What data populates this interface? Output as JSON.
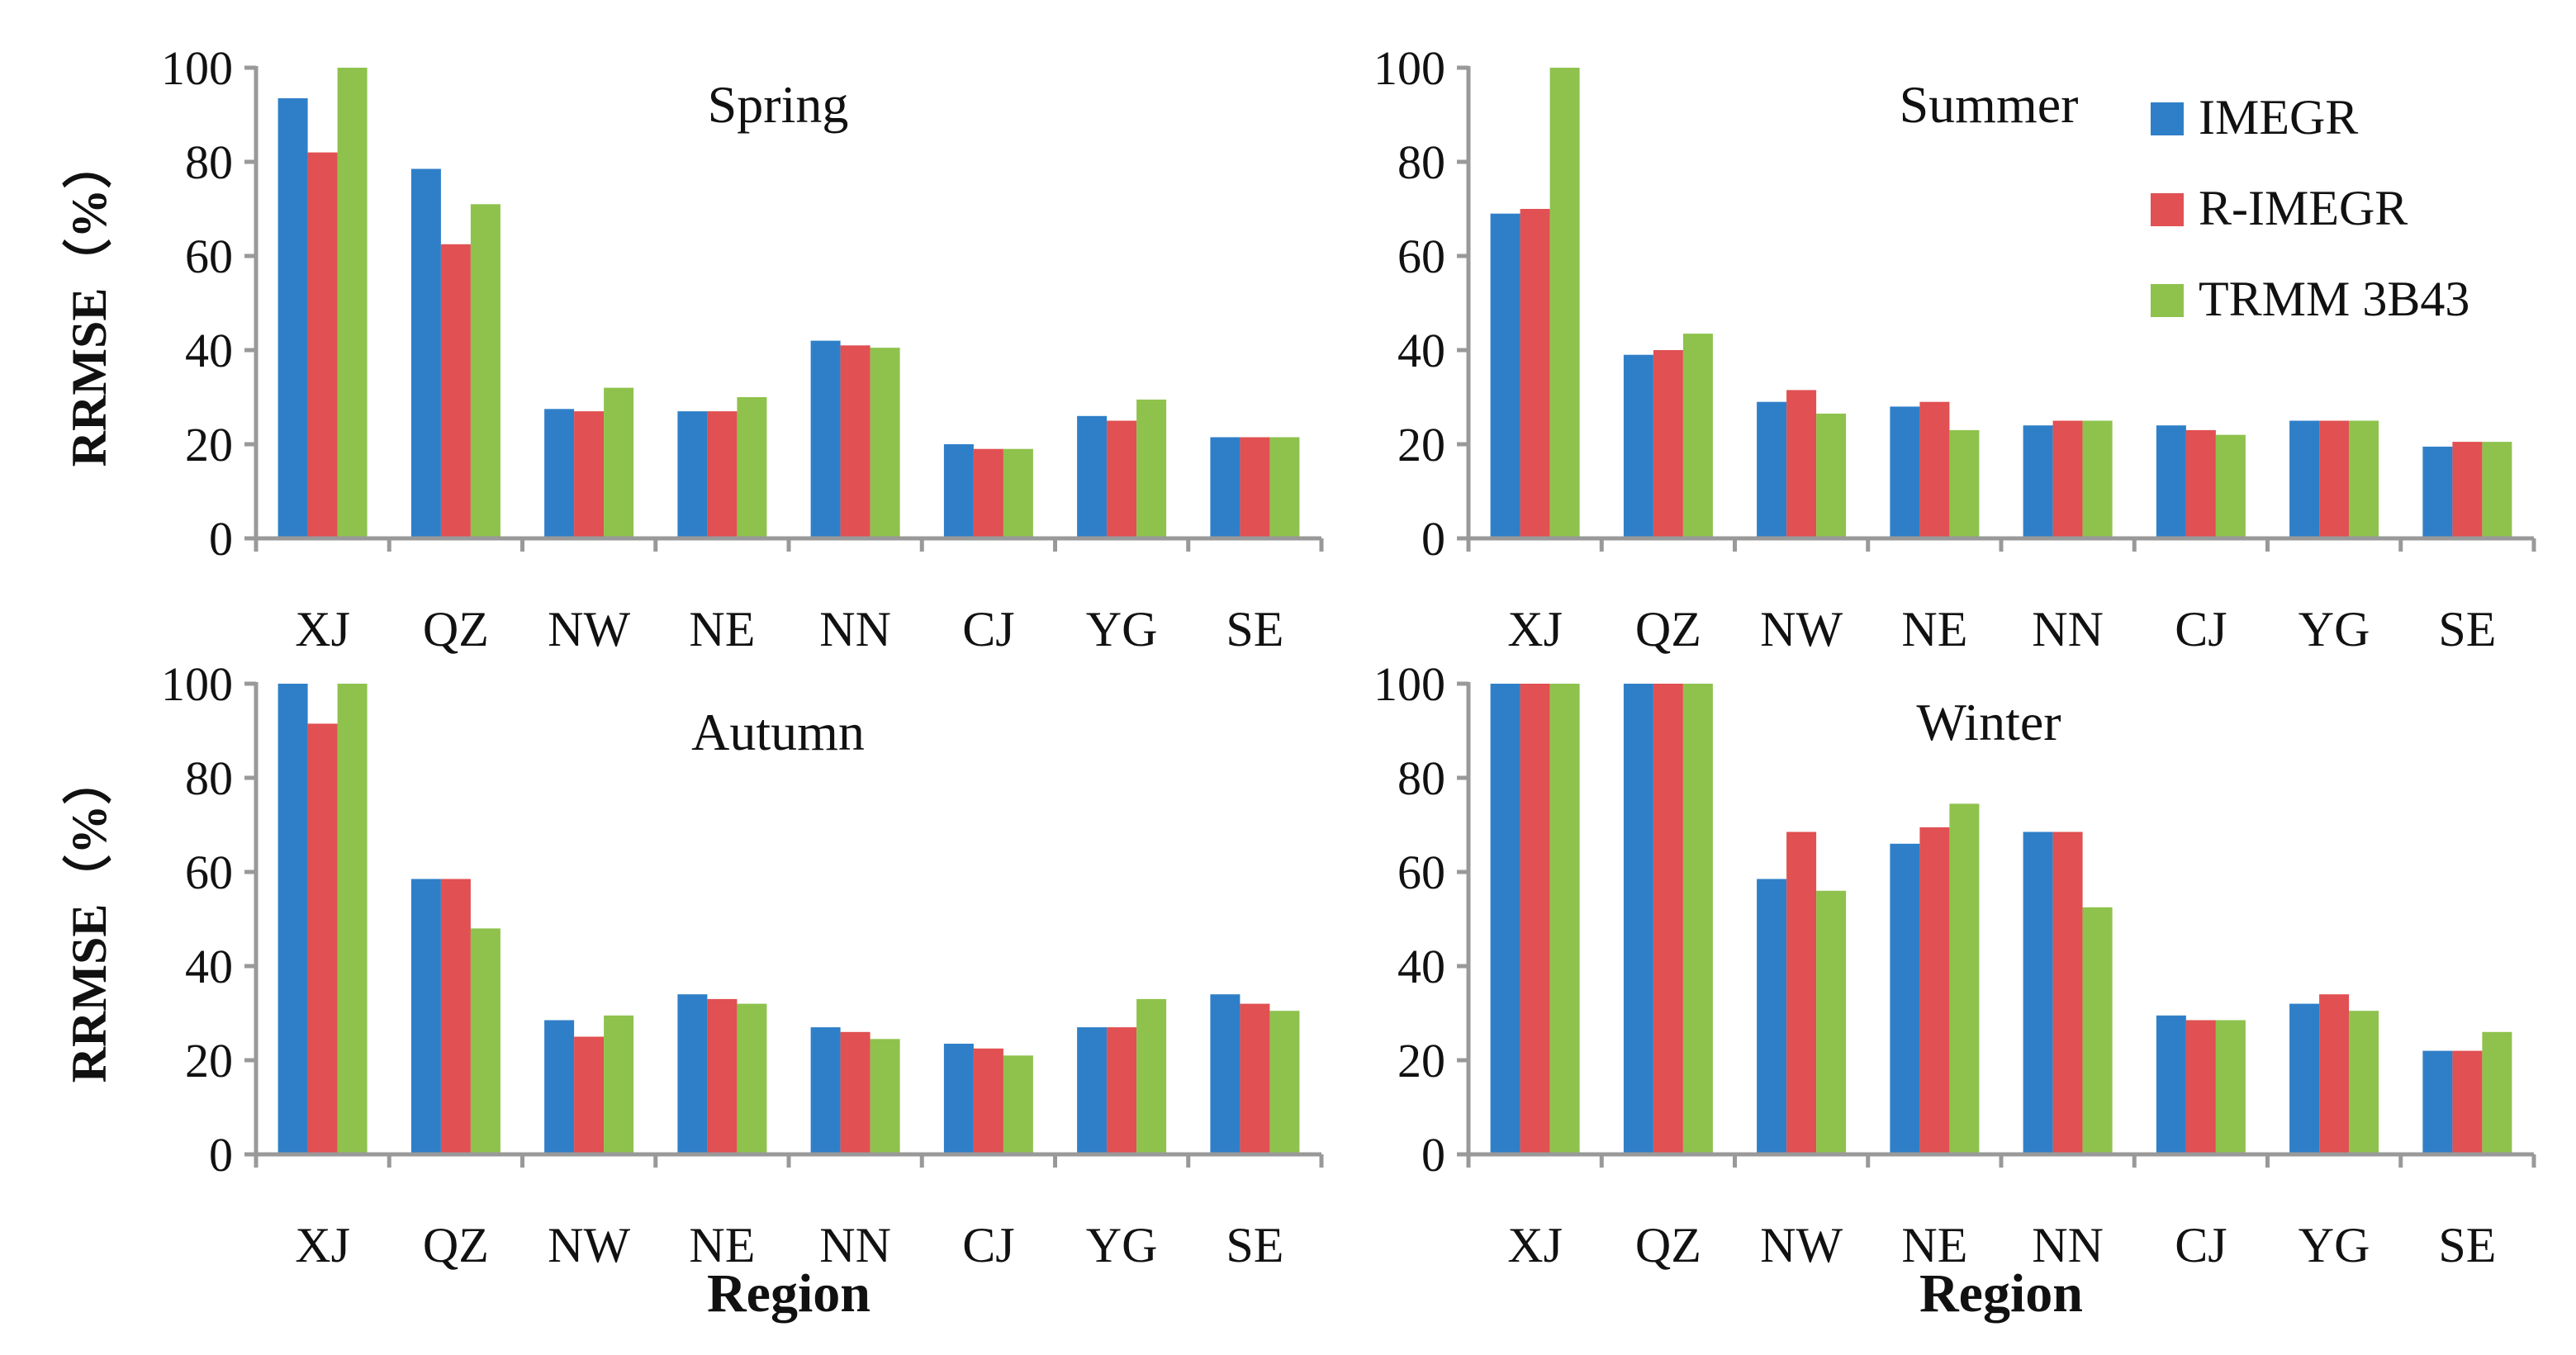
{
  "figure": {
    "categories": [
      "XJ",
      "QZ",
      "NW",
      "NE",
      "NN",
      "CJ",
      "YG",
      "SE"
    ],
    "series_names": [
      "IMEGR",
      "R-IMEGR",
      "TRMM 3B43"
    ],
    "colors": {
      "IMEGR": "#2f7fc8",
      "R-IMEGR": "#e15052",
      "TRMM 3B43": "#8ec24c",
      "axis": "#999999"
    },
    "y_ticks": [
      "0",
      "20",
      "40",
      "60",
      "80",
      "100"
    ],
    "y_title": "RRMSE（%）",
    "x_title": "Region",
    "legend": [
      "IMEGR",
      "R-IMEGR",
      "TRMM 3B43"
    ]
  },
  "chart_data": [
    {
      "type": "bar",
      "title": "Spring",
      "categories": [
        "XJ",
        "QZ",
        "NW",
        "NE",
        "NN",
        "CJ",
        "YG",
        "SE"
      ],
      "ylabel": "RRMSE（%）",
      "xlabel": "",
      "ylim": [
        0,
        100
      ],
      "series": [
        {
          "name": "IMEGR",
          "values": [
            93.5,
            78.5,
            27.5,
            27,
            42,
            20,
            26,
            21.5
          ]
        },
        {
          "name": "R-IMEGR",
          "values": [
            82,
            62.5,
            27,
            27,
            41,
            19,
            25,
            21.5
          ]
        },
        {
          "name": "TRMM 3B43",
          "values": [
            100,
            71,
            32,
            30,
            40.5,
            19,
            29.5,
            21.5
          ]
        }
      ]
    },
    {
      "type": "bar",
      "title": "Summer",
      "categories": [
        "XJ",
        "QZ",
        "NW",
        "NE",
        "NN",
        "CJ",
        "YG",
        "SE"
      ],
      "ylabel": "",
      "xlabel": "",
      "ylim": [
        0,
        100
      ],
      "series": [
        {
          "name": "IMEGR",
          "values": [
            69,
            39,
            29,
            28,
            24,
            24,
            25,
            19.5
          ]
        },
        {
          "name": "R-IMEGR",
          "values": [
            70,
            40,
            31.5,
            29,
            25,
            23,
            25,
            20.5
          ]
        },
        {
          "name": "TRMM 3B43",
          "values": [
            100,
            43.5,
            26.5,
            23,
            25,
            22,
            25,
            20.5
          ]
        }
      ]
    },
    {
      "type": "bar",
      "title": "Autumn",
      "categories": [
        "XJ",
        "QZ",
        "NW",
        "NE",
        "NN",
        "CJ",
        "YG",
        "SE"
      ],
      "ylabel": "RRMSE（%）",
      "xlabel": "Region",
      "ylim": [
        0,
        100
      ],
      "series": [
        {
          "name": "IMEGR",
          "values": [
            100,
            58.5,
            28.5,
            34,
            27,
            23.5,
            27,
            34
          ]
        },
        {
          "name": "R-IMEGR",
          "values": [
            91.5,
            58.5,
            25,
            33,
            26,
            22.5,
            27,
            32
          ]
        },
        {
          "name": "TRMM 3B43",
          "values": [
            100,
            48,
            29.5,
            32,
            24.5,
            21,
            33,
            30.5
          ]
        }
      ]
    },
    {
      "type": "bar",
      "title": "Winter",
      "categories": [
        "XJ",
        "QZ",
        "NW",
        "NE",
        "NN",
        "CJ",
        "YG",
        "SE"
      ],
      "ylabel": "",
      "xlabel": "Region",
      "ylim": [
        0,
        100
      ],
      "series": [
        {
          "name": "IMEGR",
          "values": [
            100,
            100,
            58.5,
            66,
            68.5,
            29.5,
            32,
            22
          ]
        },
        {
          "name": "R-IMEGR",
          "values": [
            100,
            100,
            68.5,
            69.5,
            68.5,
            28.5,
            34,
            22
          ]
        },
        {
          "name": "TRMM 3B43",
          "values": [
            100,
            100,
            56,
            74.5,
            52.5,
            28.5,
            30.5,
            26
          ]
        }
      ]
    }
  ]
}
